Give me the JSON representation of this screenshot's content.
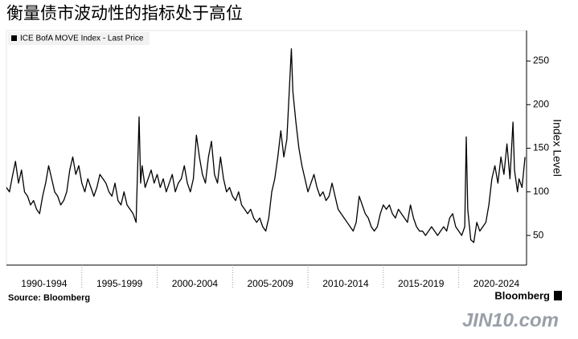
{
  "chart_data": {
    "type": "line",
    "title": "衡量债市波动性的指标处于高位",
    "y_axis_label": "Index Level",
    "source": "Source: Bloomberg",
    "brand": "Bloomberg",
    "watermark": "JIN10.com",
    "categories": [
      "1990-1994",
      "1995-1999",
      "2000-2004",
      "2005-2009",
      "2010-2014",
      "2015-2019",
      "2020-2024"
    ],
    "xlim": [
      1990,
      2024.5
    ],
    "xticks": [
      1995,
      2000,
      2005,
      2010,
      2015,
      2020
    ],
    "ylim": [
      16,
      285
    ],
    "yticks": [
      50,
      100,
      150,
      200,
      250
    ],
    "legend": "upper left",
    "x": [
      1990.0,
      1990.2,
      1990.4,
      1990.6,
      1990.8,
      1991.0,
      1991.2,
      1991.4,
      1991.6,
      1991.8,
      1992.0,
      1992.2,
      1992.4,
      1992.6,
      1992.8,
      1993.0,
      1993.2,
      1993.4,
      1993.6,
      1993.8,
      1994.0,
      1994.2,
      1994.4,
      1994.6,
      1994.8,
      1995.0,
      1995.2,
      1995.4,
      1995.6,
      1995.8,
      1996.0,
      1996.2,
      1996.4,
      1996.6,
      1996.8,
      1997.0,
      1997.2,
      1997.4,
      1997.6,
      1997.8,
      1998.0,
      1998.2,
      1998.4,
      1998.6,
      1998.8,
      1998.9,
      1999.0,
      1999.2,
      1999.4,
      1999.6,
      1999.8,
      2000.0,
      2000.2,
      2000.4,
      2000.6,
      2000.8,
      2001.0,
      2001.2,
      2001.4,
      2001.6,
      2001.8,
      2002.0,
      2002.2,
      2002.4,
      2002.6,
      2002.8,
      2003.0,
      2003.2,
      2003.4,
      2003.6,
      2003.8,
      2004.0,
      2004.2,
      2004.4,
      2004.6,
      2004.8,
      2005.0,
      2005.2,
      2005.4,
      2005.6,
      2005.8,
      2006.0,
      2006.2,
      2006.4,
      2006.6,
      2006.8,
      2007.0,
      2007.2,
      2007.4,
      2007.6,
      2007.8,
      2008.0,
      2008.2,
      2008.4,
      2008.6,
      2008.9,
      2009.0,
      2009.2,
      2009.4,
      2009.6,
      2009.8,
      2010.0,
      2010.2,
      2010.4,
      2010.6,
      2010.8,
      2011.0,
      2011.2,
      2011.4,
      2011.6,
      2011.8,
      2012.0,
      2012.2,
      2012.4,
      2012.6,
      2012.8,
      2013.0,
      2013.2,
      2013.4,
      2013.6,
      2013.8,
      2014.0,
      2014.2,
      2014.4,
      2014.6,
      2014.8,
      2015.0,
      2015.2,
      2015.4,
      2015.6,
      2015.8,
      2016.0,
      2016.2,
      2016.4,
      2016.6,
      2016.8,
      2017.0,
      2017.2,
      2017.4,
      2017.6,
      2017.8,
      2018.0,
      2018.2,
      2018.4,
      2018.6,
      2018.8,
      2019.0,
      2019.2,
      2019.4,
      2019.6,
      2019.8,
      2020.0,
      2020.2,
      2020.4,
      2020.5,
      2020.6,
      2020.8,
      2021.0,
      2021.2,
      2021.4,
      2021.6,
      2021.8,
      2022.0,
      2022.2,
      2022.4,
      2022.6,
      2022.8,
      2023.0,
      2023.2,
      2023.4,
      2023.6,
      2023.7,
      2023.9,
      2024.0,
      2024.2,
      2024.4
    ],
    "series": [
      {
        "name": "ICE BofA MOVE Index - Last Price",
        "color": "#000000",
        "values": [
          105,
          100,
          118,
          135,
          110,
          125,
          100,
          95,
          85,
          90,
          80,
          75,
          95,
          110,
          130,
          115,
          100,
          95,
          85,
          90,
          100,
          125,
          140,
          120,
          130,
          110,
          100,
          115,
          105,
          95,
          105,
          120,
          115,
          110,
          100,
          95,
          110,
          90,
          85,
          100,
          85,
          80,
          75,
          65,
          186,
          110,
          130,
          105,
          115,
          125,
          110,
          120,
          105,
          115,
          100,
          110,
          120,
          100,
          110,
          115,
          130,
          110,
          100,
          115,
          165,
          140,
          120,
          110,
          140,
          158,
          120,
          110,
          140,
          115,
          100,
          105,
          95,
          90,
          100,
          85,
          80,
          75,
          80,
          70,
          65,
          70,
          60,
          55,
          70,
          100,
          115,
          140,
          170,
          140,
          160,
          264,
          215,
          180,
          150,
          130,
          115,
          100,
          110,
          120,
          105,
          95,
          100,
          90,
          95,
          110,
          95,
          80,
          75,
          70,
          65,
          60,
          55,
          65,
          95,
          85,
          75,
          70,
          60,
          55,
          60,
          75,
          85,
          80,
          85,
          75,
          70,
          80,
          75,
          70,
          65,
          85,
          70,
          60,
          55,
          55,
          50,
          55,
          60,
          55,
          50,
          55,
          60,
          55,
          70,
          75,
          60,
          55,
          50,
          60,
          163,
          80,
          45,
          42,
          65,
          55,
          60,
          65,
          85,
          115,
          130,
          110,
          140,
          120,
          155,
          115,
          180,
          125,
          100,
          115,
          105,
          140
        ]
      }
    ]
  }
}
